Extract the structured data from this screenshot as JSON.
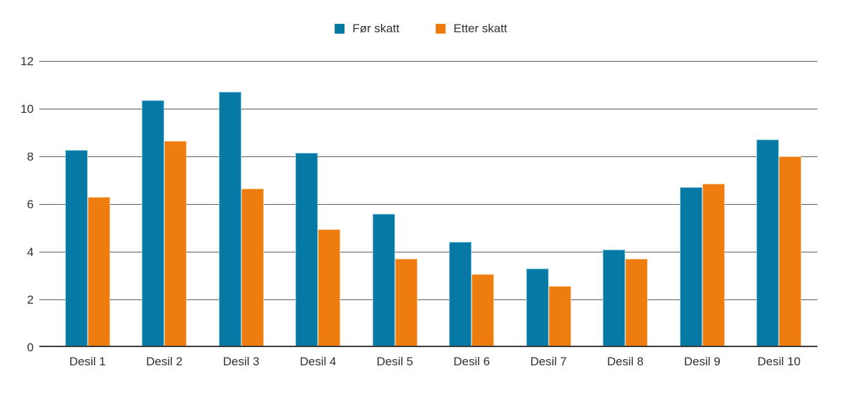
{
  "chart_data": {
    "type": "bar",
    "title": "",
    "categories": [
      "Desil 1",
      "Desil 2",
      "Desil 3",
      "Desil 4",
      "Desil 5",
      "Desil 6",
      "Desil 7",
      "Desil 8",
      "Desil 9",
      "Desil 10"
    ],
    "series": [
      {
        "name": "Før skatt",
        "color": "#0779a5",
        "edge_color": "#7ec3dc",
        "values": [
          8.25,
          10.35,
          10.7,
          8.15,
          5.6,
          4.4,
          3.3,
          4.1,
          6.7,
          8.7
        ]
      },
      {
        "name": "Etter skatt",
        "color": "#ef7c0f",
        "edge_color": "#f8c68c",
        "values": [
          6.3,
          8.65,
          6.65,
          4.95,
          3.7,
          3.05,
          2.55,
          3.7,
          6.85,
          8.0
        ]
      }
    ],
    "xlabel": "",
    "ylabel": "",
    "ylim": [
      0,
      12
    ],
    "yticks": [
      0,
      2,
      4,
      6,
      8,
      10,
      12
    ],
    "grid": true,
    "legend_position": "top-center",
    "colors": {
      "gridline": "#58595b",
      "baseline": "#3a3a3a",
      "text": "#2f2f2f",
      "background": "#ffffff"
    }
  }
}
